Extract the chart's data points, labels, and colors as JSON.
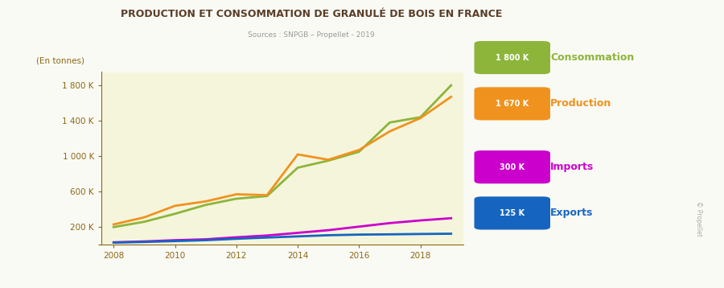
{
  "title": "PRODUCTION ET CONSOMMATION DE GRANULÉ DE BOIS EN FRANCE",
  "subtitle": "Sources : SNPGB – Propellet - 2019",
  "ylabel": "(En tonnes)",
  "background_color": "#FAFAF5",
  "plot_bg_color": "#F5F5DC",
  "title_color": "#5a3e28",
  "axis_color": "#8B6914",
  "years": [
    2008,
    2009,
    2010,
    2011,
    2012,
    2013,
    2014,
    2015,
    2016,
    2017,
    2018,
    2019
  ],
  "consommation": [
    200000,
    260000,
    350000,
    450000,
    520000,
    550000,
    870000,
    950000,
    1050000,
    1380000,
    1440000,
    1800000
  ],
  "production": [
    230000,
    310000,
    440000,
    490000,
    570000,
    560000,
    1020000,
    960000,
    1070000,
    1280000,
    1430000,
    1670000
  ],
  "imports": [
    28000,
    38000,
    52000,
    62000,
    85000,
    105000,
    135000,
    165000,
    205000,
    245000,
    275000,
    300000
  ],
  "exports": [
    25000,
    32000,
    42000,
    52000,
    68000,
    82000,
    95000,
    108000,
    115000,
    118000,
    122000,
    125000
  ],
  "color_consommation": "#8DB53A",
  "color_production": "#F0921E",
  "color_imports": "#CC00CC",
  "color_exports": "#1565C0",
  "legend_labels": [
    "Consommation",
    "Production",
    "Imports",
    "Exports"
  ],
  "legend_values": [
    "1 800 K",
    "1 670 K",
    "300 K",
    "125 K"
  ],
  "legend_colors": [
    "#8DB53A",
    "#F0921E",
    "#CC00CC",
    "#1565C0"
  ],
  "yticks": [
    0,
    200000,
    600000,
    1000000,
    1400000,
    1800000
  ],
  "ytick_labels": [
    "",
    "200 K",
    "600 K",
    "1 000 K",
    "1 400 K",
    "1 800 K"
  ],
  "ylim": [
    0,
    1950000
  ],
  "xticks": [
    2008,
    2010,
    2012,
    2014,
    2016,
    2018
  ]
}
